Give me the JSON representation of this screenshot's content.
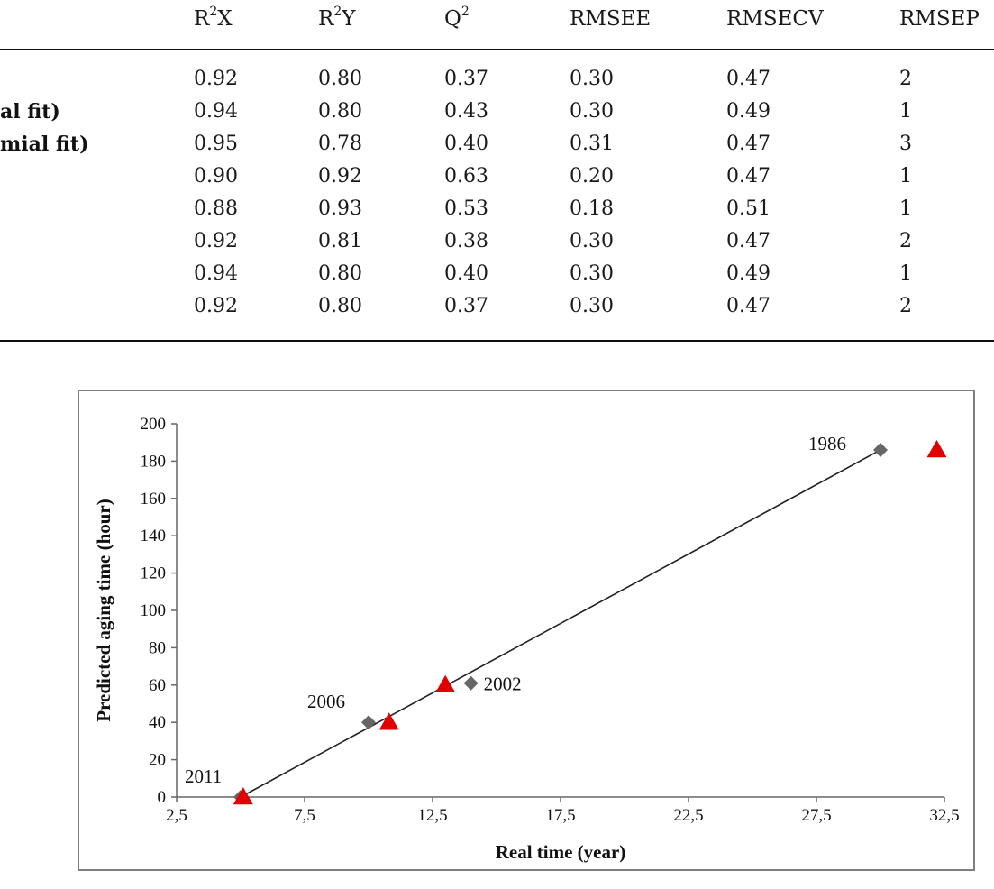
{
  "table": {
    "headers": [
      {
        "base": "R",
        "sup": "2",
        "tail": "X"
      },
      {
        "base": "R",
        "sup": "2",
        "tail": "Y"
      },
      {
        "base": "Q",
        "sup": "2",
        "tail": ""
      },
      {
        "base": "RMSEE",
        "sup": "",
        "tail": ""
      },
      {
        "base": "RMSECV",
        "sup": "",
        "tail": ""
      },
      {
        "base": "RMSEP",
        "sup": "",
        "tail": ""
      }
    ],
    "row_labels": [
      "",
      "al fit)",
      "mial fit)",
      "",
      "",
      "",
      "",
      ""
    ],
    "rows": [
      [
        "0.92",
        "0.80",
        "0.37",
        "0.30",
        "0.47",
        "2"
      ],
      [
        "0.94",
        "0.80",
        "0.43",
        "0.30",
        "0.49",
        "1"
      ],
      [
        "0.95",
        "0.78",
        "0.40",
        "0.31",
        "0.47",
        "3"
      ],
      [
        "0.90",
        "0.92",
        "0.63",
        "0.20",
        "0.47",
        "1"
      ],
      [
        "0.88",
        "0.93",
        "0.53",
        "0.18",
        "0.51",
        "1"
      ],
      [
        "0.92",
        "0.81",
        "0.38",
        "0.30",
        "0.47",
        "2"
      ],
      [
        "0.94",
        "0.80",
        "0.40",
        "0.30",
        "0.49",
        "1"
      ],
      [
        "0.92",
        "0.80",
        "0.37",
        "0.30",
        "0.47",
        "2"
      ]
    ]
  },
  "chart_data": {
    "type": "scatter",
    "xlabel": "Real time (year)",
    "ylabel": "Predicted aging time (hour)",
    "xlim": [
      2.5,
      32.5
    ],
    "ylim": [
      0,
      200
    ],
    "x_ticks": [
      "2,5",
      "7,5",
      "12,5",
      "17,5",
      "22,5",
      "27,5",
      "32,5"
    ],
    "x_tick_values": [
      2.5,
      7.5,
      12.5,
      17.5,
      22.5,
      27.5,
      32.5
    ],
    "y_ticks": [
      0,
      20,
      40,
      60,
      80,
      100,
      120,
      140,
      160,
      180,
      200
    ],
    "series": [
      {
        "marker": "diamond",
        "color": "#666666",
        "points": [
          {
            "x": 5,
            "y": 0,
            "label": "2011"
          },
          {
            "x": 10,
            "y": 40,
            "label": "2006"
          },
          {
            "x": 14,
            "y": 61,
            "label": "2002"
          },
          {
            "x": 30,
            "y": 186,
            "label": "1986"
          }
        ]
      },
      {
        "marker": "triangle",
        "color": "#e00000",
        "points": [
          {
            "x": 5.1,
            "y": 0
          },
          {
            "x": 10.8,
            "y": 40
          },
          {
            "x": 13,
            "y": 60
          },
          {
            "x": 32.2,
            "y": 186
          }
        ]
      }
    ],
    "trendline": {
      "x": [
        5,
        30
      ],
      "y": [
        0,
        186
      ],
      "color": "#222222"
    },
    "grid": false,
    "legend": "none"
  }
}
